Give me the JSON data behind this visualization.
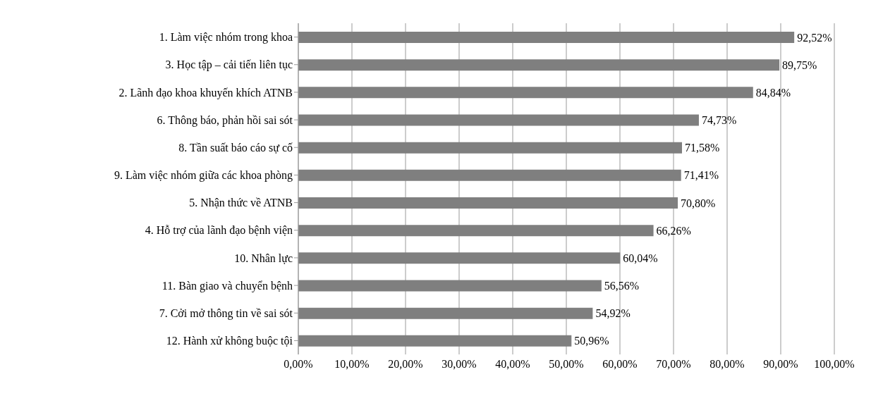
{
  "chart_data": {
    "type": "bar",
    "orientation": "horizontal",
    "categories": [
      "1. Làm việc nhóm trong khoa",
      "3. Học tập  – cải tiến liên tục",
      "2. Lãnh đạo khoa khuyến khích ATNB",
      "6. Thông báo, phản hồi sai sót",
      "8. Tần suất báo cáo sự cố",
      "9. Làm việc nhóm giữa các khoa phòng",
      "5. Nhận thức về ATNB",
      "4. Hỗ trợ của lãnh đạo bệnh viện",
      "10. Nhân lực",
      "11. Bàn giao và chuyển bệnh",
      "7. Cởi mở thông tin về sai sót",
      "12. Hành xử không buộc tội"
    ],
    "values": [
      92.52,
      89.75,
      84.84,
      74.73,
      71.58,
      71.41,
      70.8,
      66.26,
      60.04,
      56.56,
      54.92,
      50.96
    ],
    "value_labels": [
      "92,52%",
      "89,75%",
      "84,84%",
      "74,73%",
      "71,58%",
      "71,41%",
      "70,80%",
      "66,26%",
      "60,04%",
      "56,56%",
      "54,92%",
      "50,96%"
    ],
    "color": "#7f7f7f",
    "xlim": [
      0,
      100
    ],
    "xticks": [
      {
        "value": 0,
        "label": "0,00%"
      },
      {
        "value": 10,
        "label": "10,00%"
      },
      {
        "value": 20,
        "label": "20,00%"
      },
      {
        "value": 30,
        "label": "30,00%"
      },
      {
        "value": 40,
        "label": "40,00%"
      },
      {
        "value": 50,
        "label": "50,00%"
      },
      {
        "value": 60,
        "label": "60,00%"
      },
      {
        "value": 70,
        "label": "70,00%"
      },
      {
        "value": 80,
        "label": "80,00%"
      },
      {
        "value": 90,
        "label": "90,00%"
      },
      {
        "value": 100,
        "label": "100,00%"
      }
    ],
    "grid": "x"
  }
}
